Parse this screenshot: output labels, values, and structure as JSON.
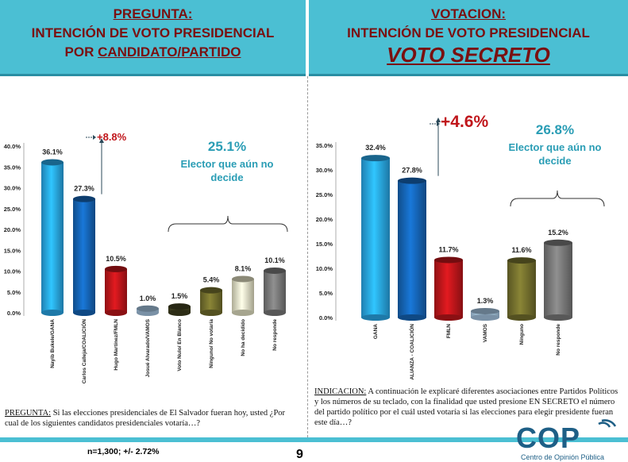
{
  "left_header": {
    "line1": "PREGUNTA:",
    "line2": "INTENCIÓN DE VOTO PRESIDENCIAL",
    "line3a": "POR ",
    "line3b": "CANDIDATO/PARTIDO"
  },
  "right_header": {
    "line1": "VOTACION:",
    "line2": "INTENCIÓN DE VOTO PRESIDENCIAL",
    "line3": "VOTO SECRETO"
  },
  "chart_data": [
    {
      "type": "bar",
      "categories": [
        "Nayib Bukele/GANA",
        "Carlos Calleja/COALICIÓN",
        "Hugo Martínez/FMLN",
        "Josué Alvarado/VAMOS",
        "Voto Nulo/ En Blanco",
        "Ninguno/ No votaría",
        "No ha decidido",
        "No responde"
      ],
      "values": [
        36.1,
        27.3,
        10.5,
        1.0,
        1.5,
        5.4,
        8.1,
        10.1
      ],
      "value_labels": [
        "36.1%",
        "27.3%",
        "10.5%",
        "1.0%",
        "1.5%",
        "5.4%",
        "8.1%",
        "10.1%"
      ],
      "colors": [
        "#29a8ea",
        "#1566b8",
        "#c0161b",
        "#a9c9e6",
        "#404020",
        "#75712e",
        "#e7e5c6",
        "#7a7a7a"
      ],
      "yticks": [
        "0.0%",
        "5.0%",
        "10.0%",
        "15.0%",
        "20.0%",
        "25.0%",
        "30.0%",
        "35.0%",
        "40.0%"
      ],
      "ylim": [
        0,
        40
      ],
      "diff_label": "+8.8%",
      "bracket_total": "25.1%",
      "bracket_text_1": "Elector que aún no",
      "bracket_text_2": "decide"
    },
    {
      "type": "bar",
      "categories": [
        "GANA",
        "ALIANZA - COALICIÓN",
        "FMLN",
        "VAMOS",
        "Ninguno",
        "No responde"
      ],
      "values": [
        32.4,
        27.8,
        11.7,
        1.3,
        11.6,
        15.2
      ],
      "value_labels": [
        "32.4%",
        "27.8%",
        "11.7%",
        "1.3%",
        "11.6%",
        "15.2%"
      ],
      "colors": [
        "#29a8ea",
        "#1566b8",
        "#c0161b",
        "#a9c9e6",
        "#75712e",
        "#7a7a7a"
      ],
      "yticks": [
        "0.0%",
        "5.0%",
        "10.0%",
        "15.0%",
        "20.0%",
        "25.0%",
        "30.0%",
        "35.0%"
      ],
      "ylim": [
        0,
        35
      ],
      "diff_label": "+4.6%",
      "bracket_total": "26.8%",
      "bracket_text_1": "Elector que aún no",
      "bracket_text_2": "decide"
    }
  ],
  "left_note": {
    "label": "PREGUNTA:",
    "text": " Si las elecciones presidenciales de El Salvador fueran hoy, usted ¿Por cual de los siguientes candidatos presidenciales votaría…?"
  },
  "right_note": {
    "label": "INDICACION:",
    "text": " A continuación le explicaré diferentes asociaciones entre Partidos Políticos y los números de su teclado, con la finalidad que usted presione EN SECRETO el número del partido político por el cuál usted votaría si las elecciones para elegir presidente fueran este día…?"
  },
  "footer": {
    "sample": "n=1,300; +/- 2.72%",
    "page": "9"
  },
  "logo": {
    "letters": "COP",
    "subtitle": "Centro de Opinión Pública"
  }
}
